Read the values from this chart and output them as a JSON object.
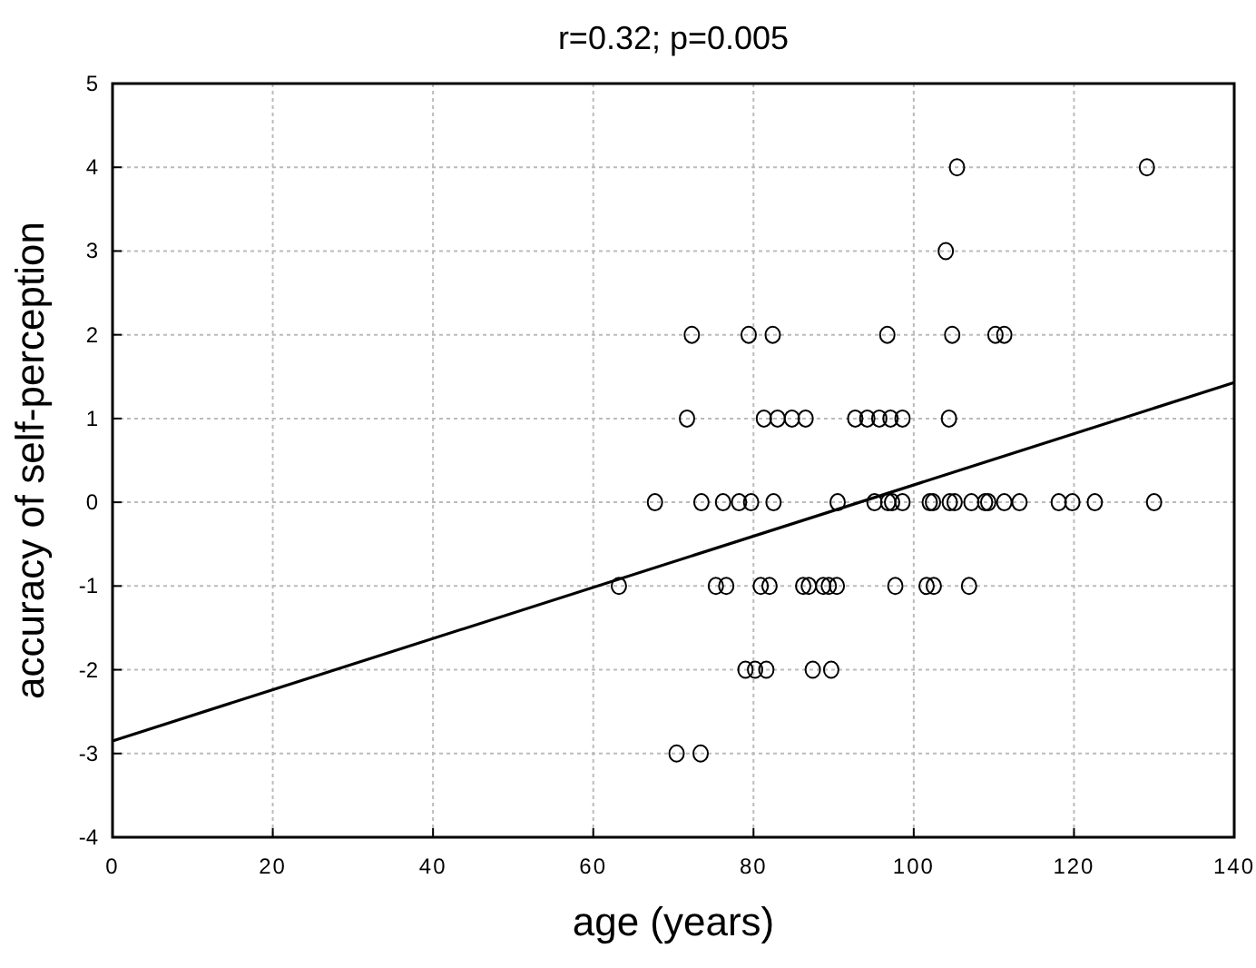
{
  "chart_data": {
    "type": "scatter",
    "title": "r=0.32; p=0.005",
    "xlabel": "age (years)",
    "ylabel": "accuracy of self-perception",
    "xlim": [
      0,
      140
    ],
    "xticks": [
      0,
      20,
      40,
      60,
      80,
      100,
      120,
      140
    ],
    "ylim": [
      -4,
      5
    ],
    "yticks": [
      -4,
      -3,
      -2,
      -1,
      0,
      1,
      2,
      3,
      4,
      5
    ],
    "grid": true,
    "marker": "circle",
    "series": [
      {
        "color": "#000000",
        "x": [
          105.4,
          129.1,
          104,
          72.3,
          79.4,
          82.4,
          96.7,
          104.8,
          110.2,
          111.3,
          71.7,
          81.3,
          83,
          84.8,
          86.5,
          92.7,
          94.2,
          95.7,
          97.1,
          98.6,
          104.4,
          67.7,
          73.5,
          76.2,
          78.2,
          79.7,
          82.5,
          90.5,
          95.1,
          96.8,
          97.3,
          98.6,
          102,
          102.4,
          104.5,
          105.1,
          107.2,
          108.9,
          109.3,
          111.3,
          113.2,
          118.1,
          119.8,
          122.6,
          130,
          63.2,
          75.3,
          76.6,
          80.9,
          82,
          86.2,
          86.9,
          88.7,
          89.4,
          90.4,
          97.7,
          101.6,
          102.5,
          106.9,
          79,
          80.2,
          81.6,
          87.4,
          89.7,
          70.4,
          73.4
        ],
        "values": [
          4,
          4,
          3,
          2,
          2,
          2,
          2,
          2,
          2,
          2,
          1,
          1,
          1,
          1,
          1,
          1,
          1,
          1,
          1,
          1,
          1,
          0,
          0,
          0,
          0,
          0,
          0,
          0,
          0,
          0,
          0,
          0,
          0,
          0,
          0,
          0,
          0,
          0,
          0,
          0,
          0,
          0,
          0,
          0,
          0,
          -1,
          -1,
          -1,
          -1,
          -1,
          -1,
          -1,
          -1,
          -1,
          -1,
          -1,
          -1,
          -1,
          -1,
          -2,
          -2,
          -2,
          -2,
          -2,
          -3,
          -3
        ]
      },
      {
        "type": "line",
        "color": "#000000",
        "marker": "none",
        "line_style": "solid",
        "x": [
          0,
          140
        ],
        "values": [
          -2.85,
          1.43
        ]
      }
    ]
  }
}
